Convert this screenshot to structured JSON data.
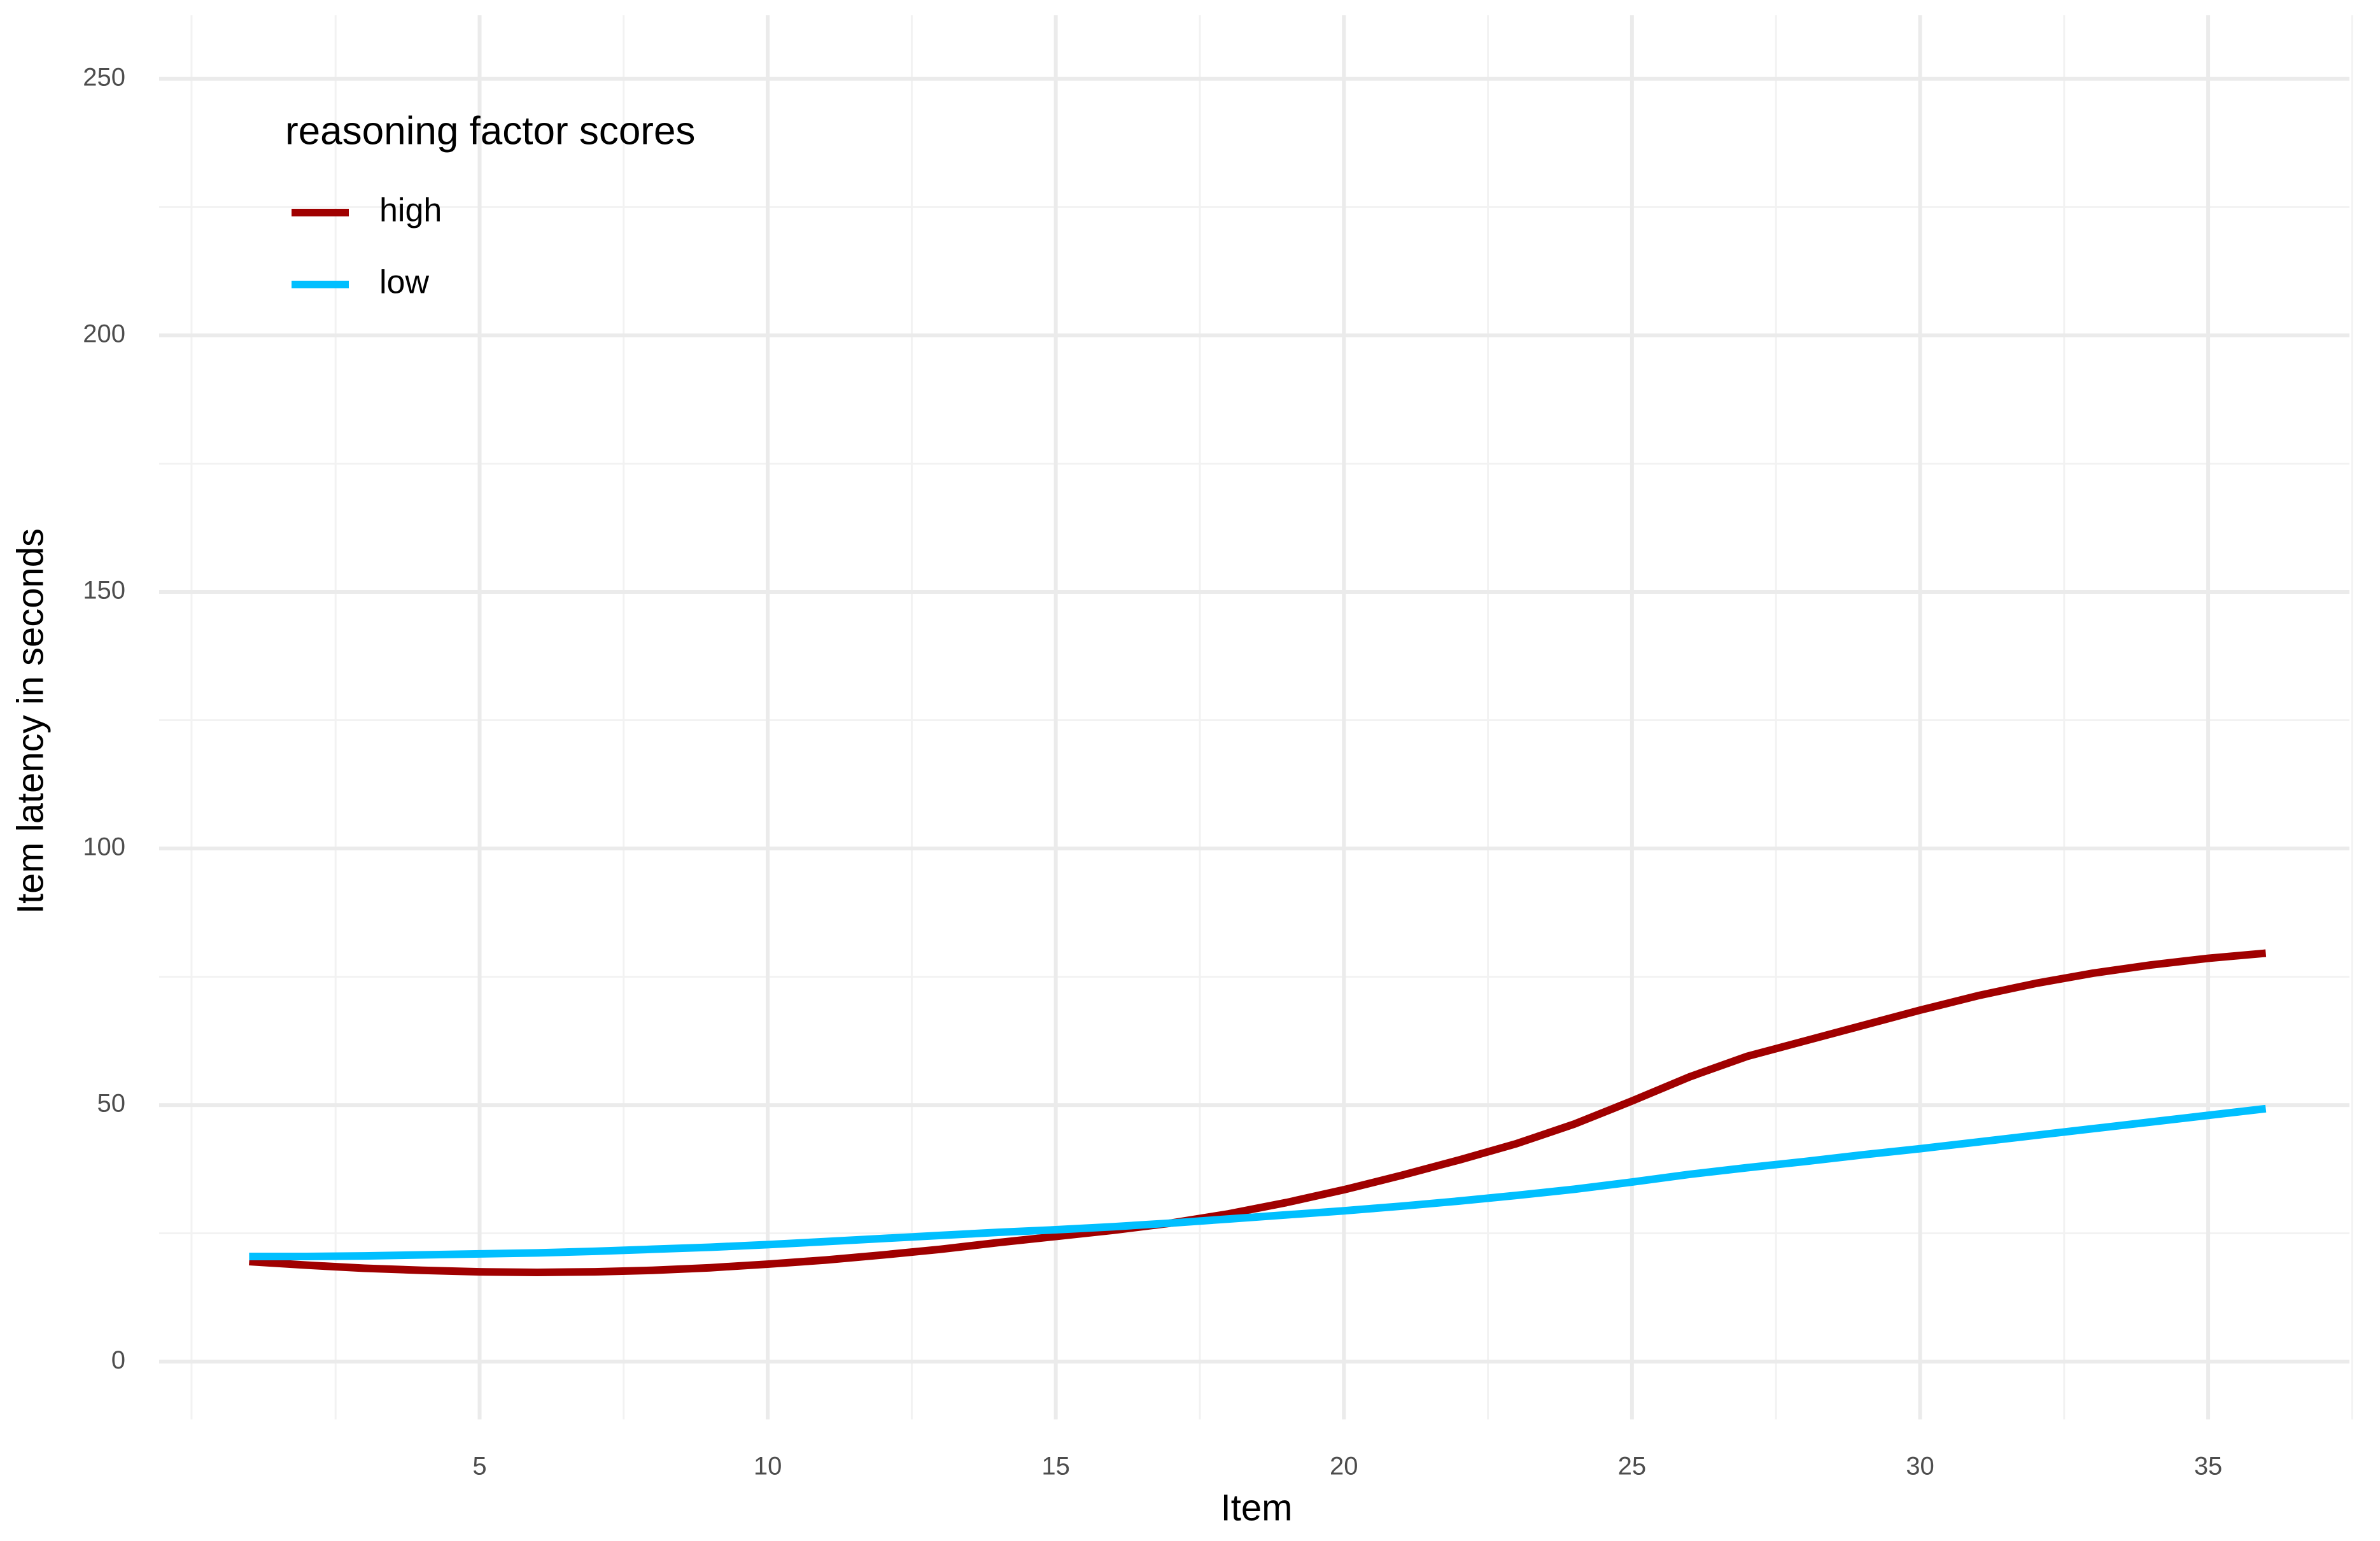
{
  "chart_data": {
    "type": "line",
    "x_label": "Item",
    "y_label": "Item latency in seconds",
    "legend_title": "reasoning factor scores",
    "legend_position": "top-left",
    "x": [
      1,
      2,
      3,
      4,
      5,
      6,
      7,
      8,
      9,
      10,
      11,
      12,
      13,
      14,
      15,
      16,
      17,
      18,
      19,
      20,
      21,
      22,
      23,
      24,
      25,
      26,
      27,
      28,
      29,
      30,
      31,
      32,
      33,
      34,
      35,
      36
    ],
    "series": [
      {
        "name": "high",
        "color": "#a00000",
        "values": [
          19.5,
          18.8,
          18.2,
          17.8,
          17.5,
          17.4,
          17.5,
          17.8,
          18.3,
          19,
          19.8,
          20.8,
          21.9,
          23.2,
          24.4,
          25.6,
          27,
          28.8,
          31,
          33.5,
          36.3,
          39.3,
          42.5,
          46.3,
          50.8,
          55.5,
          59.5,
          62.5,
          65.5,
          68.5,
          71.3,
          73.7,
          75.7,
          77.3,
          78.6,
          79.6
        ]
      },
      {
        "name": "low",
        "color": "#00bfff",
        "values": [
          20.5,
          20.5,
          20.6,
          20.8,
          21,
          21.2,
          21.5,
          21.9,
          22.3,
          22.8,
          23.4,
          24,
          24.6,
          25.2,
          25.7,
          26.3,
          27,
          27.8,
          28.6,
          29.4,
          30.3,
          31.3,
          32.4,
          33.6,
          35,
          36.5,
          37.8,
          39,
          40.3,
          41.5,
          42.8,
          44.1,
          45.4,
          46.7,
          48,
          49.3
        ]
      }
    ],
    "xlim": [
      -0.75,
      37.75
    ],
    "ylim": [
      -12.5,
      262.5
    ],
    "xticks": [
      5,
      10,
      15,
      20,
      25,
      30,
      35
    ],
    "yticks": [
      0,
      50,
      100,
      150,
      200,
      250
    ],
    "x_minor_ticks": [
      0,
      2.5,
      7.5,
      12.5,
      17.5,
      22.5,
      27.5,
      32.5,
      37.5
    ],
    "y_minor_ticks": [
      25,
      75,
      125,
      175,
      225
    ],
    "grid": true
  }
}
